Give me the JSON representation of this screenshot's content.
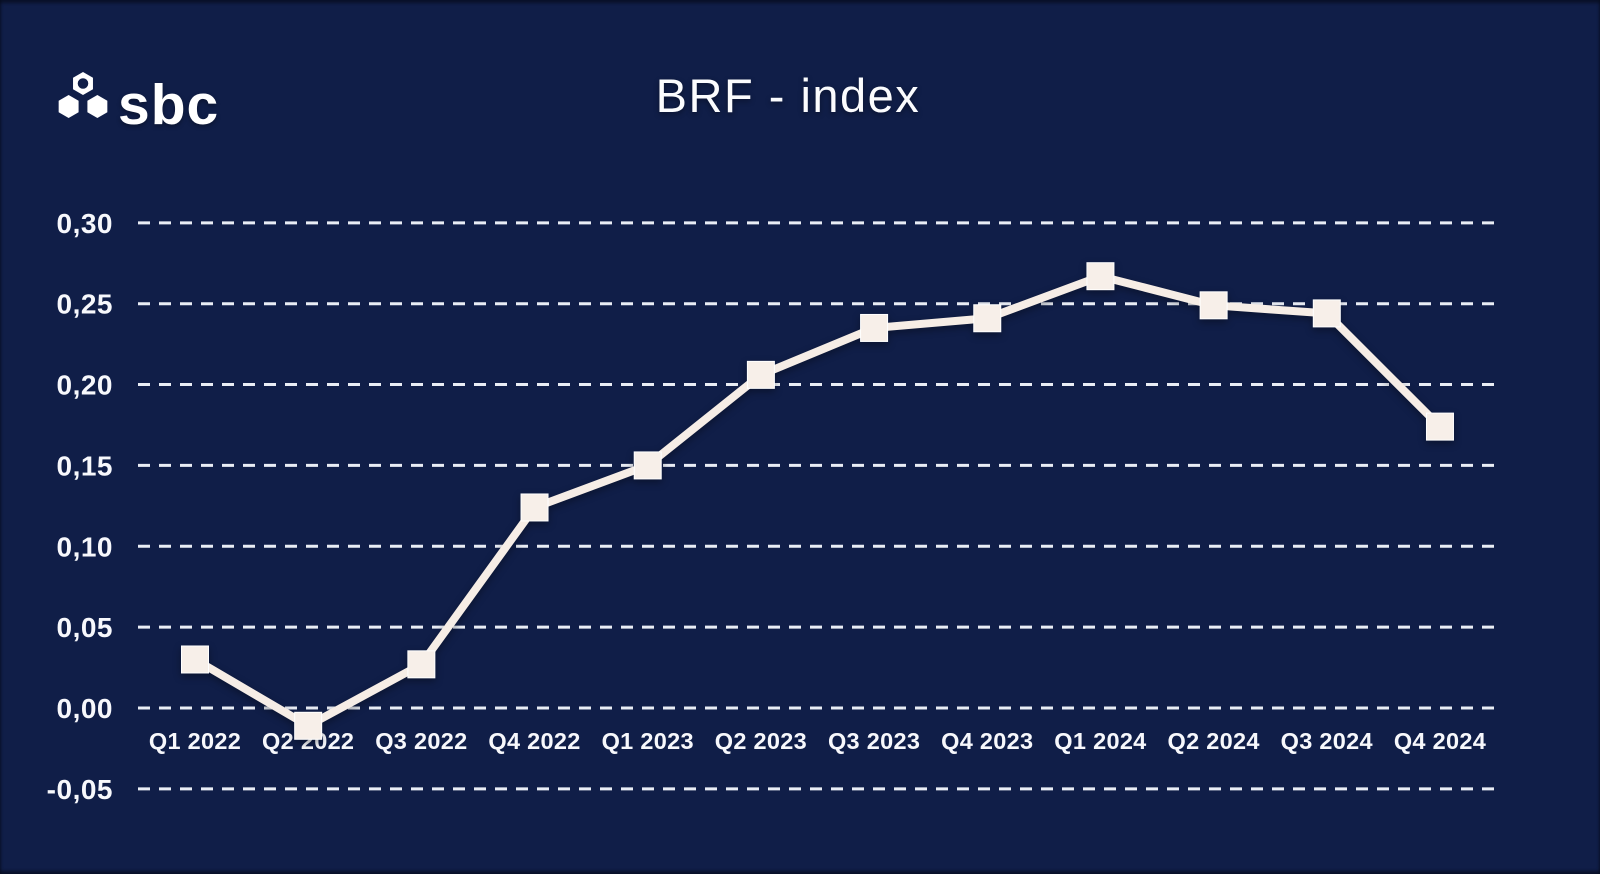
{
  "page": {
    "background_color": "#101e48"
  },
  "logo": {
    "text": "sbc",
    "icon": "hexagon-cluster-icon"
  },
  "header": {
    "title": "BRF - index"
  },
  "chart_data": {
    "type": "line",
    "title": "BRF - index",
    "categories": [
      "Q1 2022",
      "Q2 2022",
      "Q3 2022",
      "Q4 2022",
      "Q1 2023",
      "Q2 2023",
      "Q3 2023",
      "Q4 2023",
      "Q1 2024",
      "Q2 2024",
      "Q3 2024",
      "Q4 2024"
    ],
    "series": [
      {
        "name": "BRF-index",
        "values": [
          0.03,
          -0.011,
          0.027,
          0.124,
          0.15,
          0.206,
          0.235,
          0.241,
          0.267,
          0.249,
          0.244,
          0.174
        ]
      }
    ],
    "ylim": [
      -0.05,
      0.3
    ],
    "ytick_step": 0.05,
    "ytick_labels": [
      "0,30",
      "0,25",
      "0,20",
      "0,15",
      "0,10",
      "0,05",
      "0,00",
      "-0,05"
    ],
    "decimal_separator": ",",
    "grid": "horizontal-dashed",
    "legend_position": "none",
    "marker_shape": "square",
    "line_color": "#f6ede6",
    "marker_color": "#f7efe9",
    "grid_color": "#e9edf5",
    "text_color": "#f7f8fc",
    "background_color": "#101e48"
  }
}
